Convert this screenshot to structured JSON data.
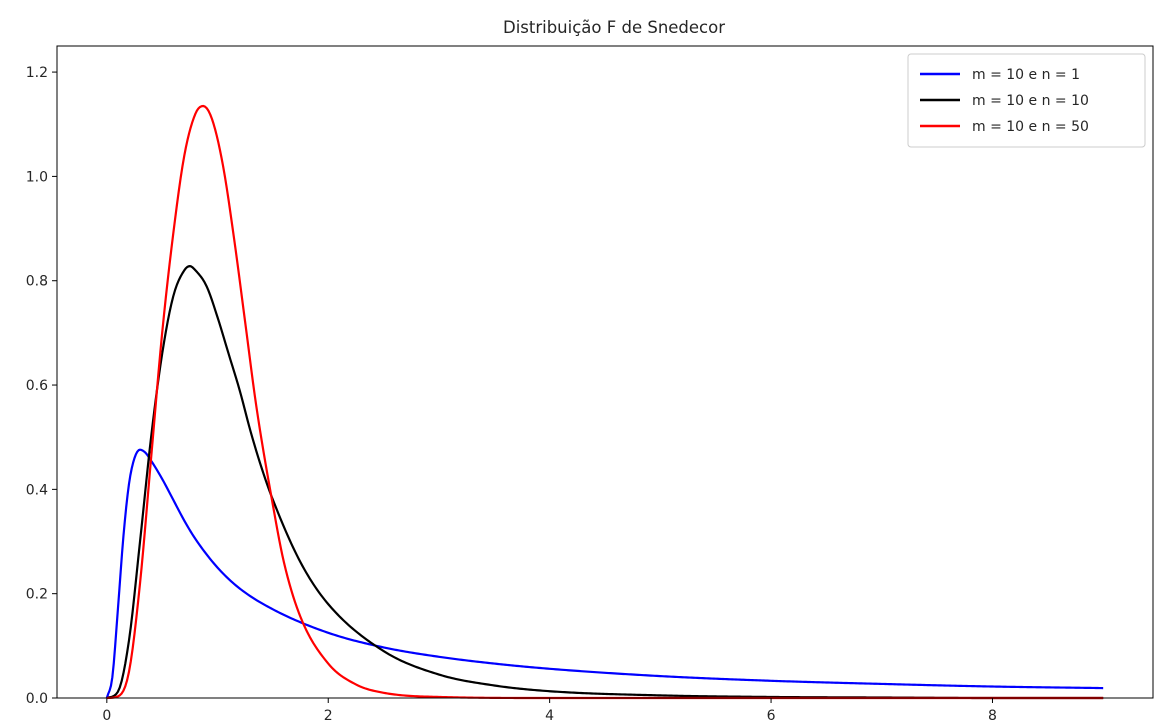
{
  "chart_data": {
    "type": "line",
    "title": "Distribuição F de Snedecor",
    "xlabel": "",
    "ylabel": "",
    "xlim": [
      -0.45,
      9.45
    ],
    "ylim": [
      0.0,
      1.25
    ],
    "x_ticks": [
      0,
      2,
      4,
      6,
      8
    ],
    "x_tick_labels": [
      "0",
      "2",
      "4",
      "6",
      "8"
    ],
    "y_ticks": [
      0.0,
      0.2,
      0.4,
      0.6,
      0.8,
      1.0,
      1.2
    ],
    "y_tick_labels": [
      "0.0",
      "0.2",
      "0.4",
      "0.6",
      "0.8",
      "1.0",
      "1.2"
    ],
    "grid": false,
    "legend_position": "top-right",
    "x_range": [
      0,
      9
    ],
    "series": [
      {
        "name": "m = 10 e n = 1",
        "color": "#0000ff",
        "points": [
          [
            0,
            0
          ],
          [
            0.05,
            0.04
          ],
          [
            0.1,
            0.17
          ],
          [
            0.15,
            0.31
          ],
          [
            0.2,
            0.41
          ],
          [
            0.25,
            0.46
          ],
          [
            0.3,
            0.476
          ],
          [
            0.35,
            0.47
          ],
          [
            0.4,
            0.455
          ],
          [
            0.5,
            0.42
          ],
          [
            0.6,
            0.38
          ],
          [
            0.7,
            0.34
          ],
          [
            0.8,
            0.305
          ],
          [
            1.0,
            0.25
          ],
          [
            1.2,
            0.21
          ],
          [
            1.5,
            0.17
          ],
          [
            2.0,
            0.125
          ],
          [
            2.5,
            0.097
          ],
          [
            3.0,
            0.079
          ],
          [
            3.5,
            0.066
          ],
          [
            4.0,
            0.056
          ],
          [
            5.0,
            0.042
          ],
          [
            6.0,
            0.033
          ],
          [
            7.0,
            0.027
          ],
          [
            8.0,
            0.022
          ],
          [
            9.0,
            0.019
          ]
        ]
      },
      {
        "name": "m = 10 e n = 10",
        "color": "#000000",
        "points": [
          [
            0,
            0
          ],
          [
            0.1,
            0.012
          ],
          [
            0.2,
            0.11
          ],
          [
            0.3,
            0.3
          ],
          [
            0.4,
            0.5
          ],
          [
            0.5,
            0.66
          ],
          [
            0.6,
            0.77
          ],
          [
            0.7,
            0.82
          ],
          [
            0.75,
            0.828
          ],
          [
            0.8,
            0.82
          ],
          [
            0.9,
            0.79
          ],
          [
            1.0,
            0.73
          ],
          [
            1.1,
            0.66
          ],
          [
            1.2,
            0.59
          ],
          [
            1.3,
            0.51
          ],
          [
            1.4,
            0.44
          ],
          [
            1.5,
            0.38
          ],
          [
            1.75,
            0.26
          ],
          [
            2.0,
            0.18
          ],
          [
            2.5,
            0.09
          ],
          [
            3.0,
            0.045
          ],
          [
            3.5,
            0.024
          ],
          [
            4.0,
            0.013
          ],
          [
            5.0,
            0.005
          ],
          [
            6.0,
            0.002
          ],
          [
            7.0,
            0.001
          ],
          [
            8.0,
            0.0
          ],
          [
            9.0,
            0.0
          ]
        ]
      },
      {
        "name": "m = 10 e n = 50",
        "color": "#ff0000",
        "points": [
          [
            0,
            0
          ],
          [
            0.1,
            0.003
          ],
          [
            0.2,
            0.05
          ],
          [
            0.3,
            0.22
          ],
          [
            0.4,
            0.46
          ],
          [
            0.5,
            0.7
          ],
          [
            0.6,
            0.89
          ],
          [
            0.7,
            1.04
          ],
          [
            0.8,
            1.12
          ],
          [
            0.87,
            1.135
          ],
          [
            0.95,
            1.11
          ],
          [
            1.05,
            1.02
          ],
          [
            1.15,
            0.88
          ],
          [
            1.25,
            0.72
          ],
          [
            1.35,
            0.56
          ],
          [
            1.5,
            0.37
          ],
          [
            1.6,
            0.26
          ],
          [
            1.75,
            0.155
          ],
          [
            2.0,
            0.066
          ],
          [
            2.25,
            0.026
          ],
          [
            2.5,
            0.01
          ],
          [
            3.0,
            0.002
          ],
          [
            4.0,
            0.0
          ],
          [
            9.0,
            0.0
          ]
        ]
      }
    ]
  }
}
